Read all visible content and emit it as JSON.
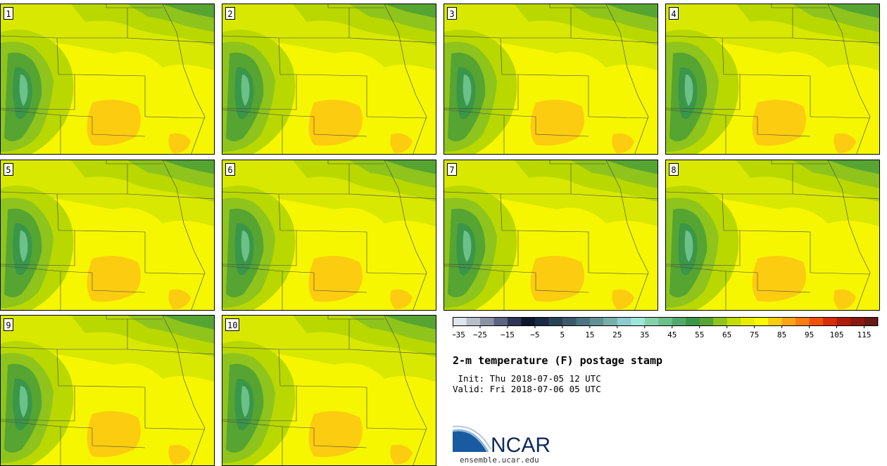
{
  "panels": [
    {
      "label": "1"
    },
    {
      "label": "2"
    },
    {
      "label": "3"
    },
    {
      "label": "4"
    },
    {
      "label": "5"
    },
    {
      "label": "6"
    },
    {
      "label": "7"
    },
    {
      "label": "8"
    },
    {
      "label": "9"
    },
    {
      "label": "10"
    }
  ],
  "colorbar": {
    "colors": [
      "#e0e4ec",
      "#b8bdca",
      "#8c92a6",
      "#5c6480",
      "#2e3656",
      "#0e1630",
      "#1a2a44",
      "#2a4256",
      "#3a5a6c",
      "#4c7484",
      "#609294",
      "#76b0ac",
      "#8ccccc",
      "#9ee6dc",
      "#86d2a8",
      "#6cc08a",
      "#52aa6a",
      "#3a9648",
      "#56a432",
      "#8ec41c",
      "#c4dc08",
      "#e8ec00",
      "#fafa00",
      "#fccc10",
      "#fca418",
      "#fc7c14",
      "#f0500c",
      "#d82c08",
      "#b01c0c",
      "#8a1a10",
      "#6a1a14"
    ],
    "ticks": [
      "−35",
      "−25",
      "−15",
      "−5",
      "5",
      "15",
      "25",
      "35",
      "45",
      "55",
      "65",
      "75",
      "85",
      "95",
      "105",
      "115"
    ]
  },
  "title": "2-m temperature (F) postage stamp",
  "init": " Init: Thu 2018-07-05 12 UTC",
  "valid": "Valid: Fri 2018-07-06 05 UTC",
  "logo": {
    "text": "NCAR",
    "url": "ensemble.ucar.edu",
    "colors": {
      "blue": "#1a5aa0",
      "navy": "#0c2a5c"
    }
  }
}
